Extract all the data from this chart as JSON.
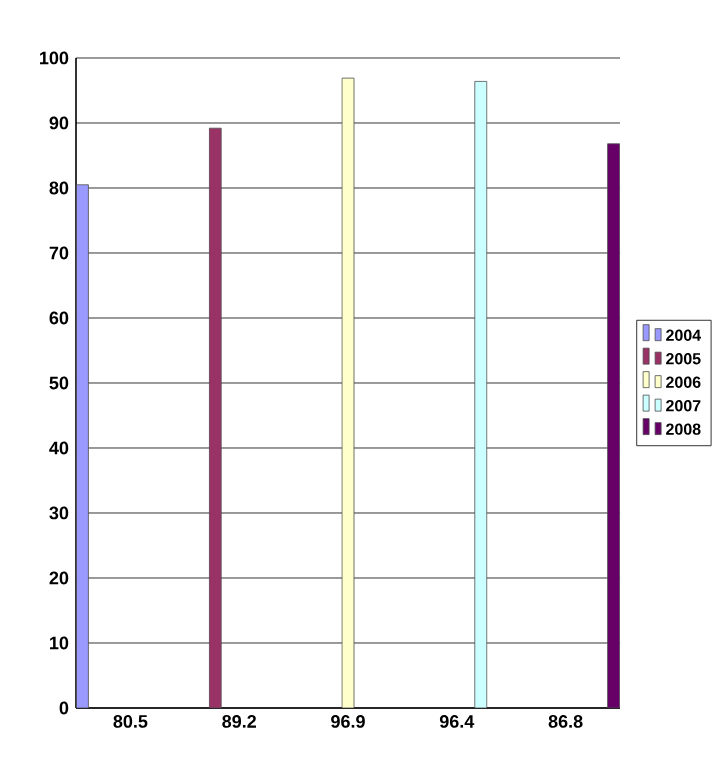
{
  "chart_data": {
    "type": "bar",
    "categories": [
      "80.5",
      "89.2",
      "96.9",
      "96.4",
      "86.8"
    ],
    "series": [
      {
        "name": "2004",
        "color": "#9999ff",
        "values": [
          80.5,
          null,
          null,
          null,
          null
        ]
      },
      {
        "name": "2005",
        "color": "#993366",
        "values": [
          null,
          89.2,
          null,
          null,
          null
        ]
      },
      {
        "name": "2006",
        "color": "#ffffcc",
        "values": [
          null,
          null,
          96.9,
          null,
          null
        ]
      },
      {
        "name": "2007",
        "color": "#ccffff",
        "values": [
          null,
          null,
          null,
          96.4,
          null
        ]
      },
      {
        "name": "2008",
        "color": "#660066",
        "values": [
          null,
          null,
          null,
          null,
          86.8
        ]
      }
    ],
    "ylim": [
      0,
      100
    ],
    "yticks": [
      0,
      10,
      20,
      30,
      40,
      50,
      60,
      70,
      80,
      90,
      100
    ],
    "grid": "y",
    "legend": "right"
  }
}
